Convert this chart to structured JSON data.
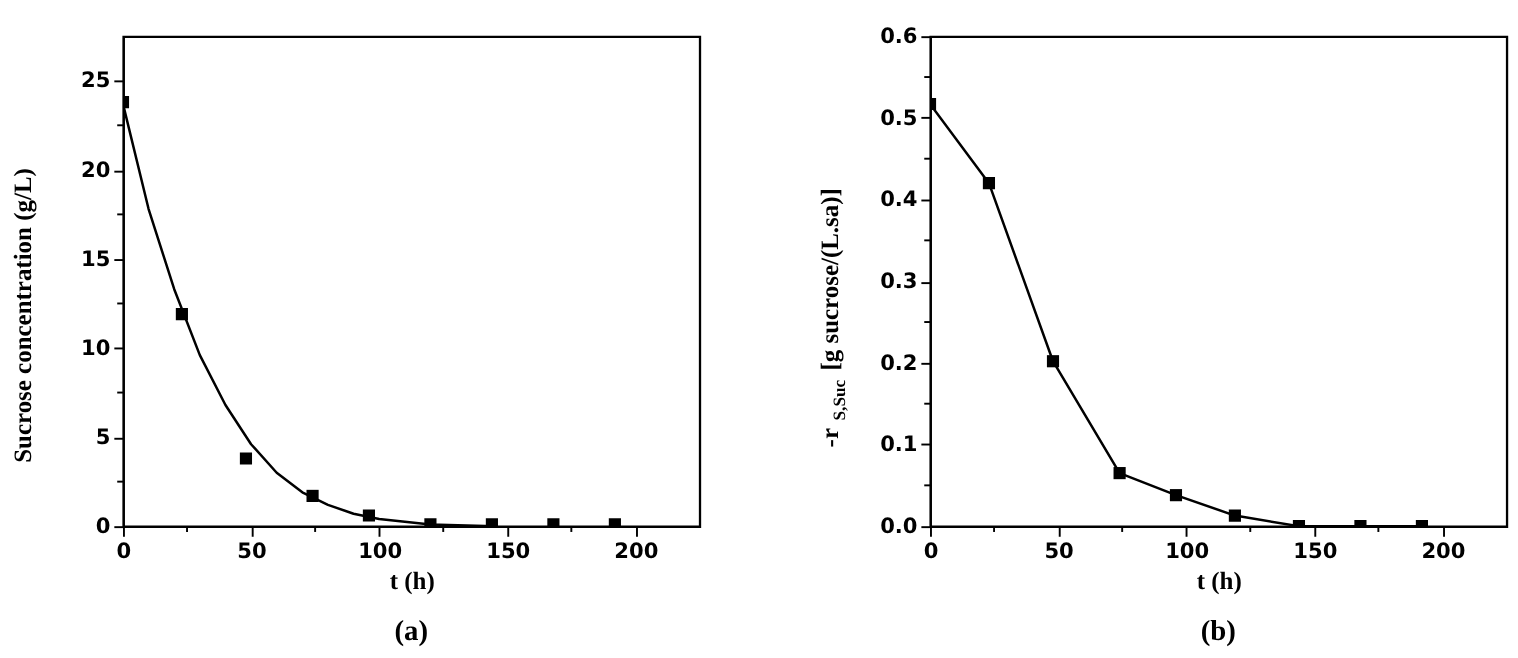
{
  "chart_data": [
    {
      "type": "scatter",
      "xlabel": "t (h)",
      "ylabel": "Sucrose concentration (g/L)",
      "annotations": [
        "(a)"
      ],
      "xlim": [
        0,
        225
      ],
      "ylim": [
        0,
        27.5
      ],
      "xticks": [
        0,
        {
          "value": 25,
          "label": null
        },
        50,
        {
          "value": 75,
          "label": null
        },
        100,
        {
          "value": 125,
          "label": null
        },
        150,
        {
          "value": 175,
          "label": null
        },
        200
      ],
      "yticks": [
        0,
        {
          "value": 2.5,
          "label": null
        },
        5,
        {
          "value": 7.5,
          "label": null
        },
        10,
        {
          "value": 12.5,
          "label": null
        },
        15,
        {
          "value": 17.5,
          "label": null
        },
        20,
        {
          "value": 22.5,
          "label": null
        },
        25
      ],
      "grid": false,
      "series": [
        {
          "marker": "square",
          "color": "#000000",
          "x": [
            0,
            23,
            48,
            74,
            96,
            120,
            144,
            168,
            192
          ],
          "values": [
            23.8,
            11.9,
            3.8,
            1.7,
            0.6,
            0.1,
            0.1,
            0.1,
            0.1
          ]
        },
        {
          "type": "line",
          "marker": "none",
          "line_style": "solid",
          "color": "#000000",
          "x": [
            0,
            10,
            20,
            30,
            40,
            50,
            60,
            70,
            80,
            90,
            100,
            120,
            145
          ],
          "values": [
            23.7,
            17.8,
            13.3,
            9.6,
            6.8,
            4.6,
            3.0,
            1.9,
            1.2,
            0.7,
            0.4,
            0.1,
            0.0
          ]
        }
      ]
    },
    {
      "type": "line",
      "xlabel": "t (h)",
      "ylabel": "-r$_{S,Suc}$ [g sucrose/(L.sa)]",
      "annotations": [
        "(b)"
      ],
      "xlim": [
        0,
        225
      ],
      "ylim": [
        0,
        0.6
      ],
      "xticks": [
        0,
        {
          "value": 25,
          "label": null
        },
        50,
        {
          "value": 75,
          "label": null
        },
        100,
        {
          "value": 125,
          "label": null
        },
        150,
        {
          "value": 175,
          "label": null
        },
        200
      ],
      "yticks": [
        {
          "value": 0,
          "label": "0.0"
        },
        {
          "value": 0.05,
          "label": null
        },
        0.1,
        {
          "value": 0.15,
          "label": null
        },
        0.2,
        {
          "value": 0.25,
          "label": null
        },
        0.3,
        {
          "value": 0.35,
          "label": null
        },
        0.4,
        {
          "value": 0.45,
          "label": null
        },
        0.5,
        {
          "value": 0.55,
          "label": null
        },
        0.6
      ],
      "grid": false,
      "series": [
        {
          "marker": "square",
          "line_style": "solid",
          "color": "#000000",
          "x": [
            0,
            23,
            48,
            74,
            96,
            119,
            144,
            168,
            192
          ],
          "values": [
            0.517,
            0.42,
            0.202,
            0.065,
            0.038,
            0.013,
            0.0,
            0.0,
            0.0
          ]
        }
      ]
    }
  ]
}
